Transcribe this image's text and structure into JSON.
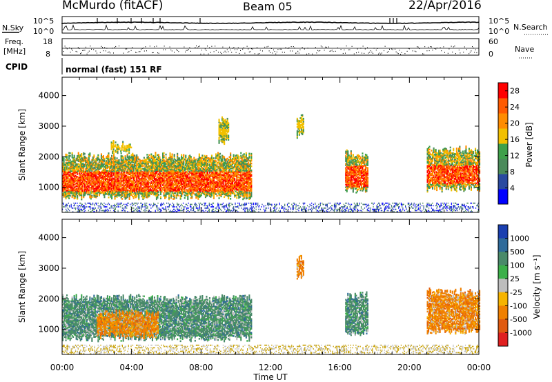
{
  "header": {
    "station": "McMurdo (fitACF)",
    "beam": "Beam 05",
    "date": "22/Apr/2016"
  },
  "top_panels": {
    "nsky_label": "N.Sky",
    "nsky_ticks": [
      "10^5",
      "10^0"
    ],
    "nsearch_label": "N.Search",
    "nsearch_ticks": [
      "10^5",
      "10^0"
    ],
    "freq_label": "Freq.",
    "freq_unit": "[MHz]",
    "freq_ticks": [
      "18",
      "8"
    ],
    "nave_label": "Nave",
    "nave_ticks": [
      "60",
      "0"
    ],
    "cpid_label": "CPID",
    "cpid_text": "normal (fast) 151 RF"
  },
  "colors": {
    "power_scale": [
      "#0000ff",
      "#2a4aa0",
      "#4a8a5a",
      "#3fa04a",
      "#f2c000",
      "#ff8c00",
      "#ff5a00",
      "#ff0000"
    ],
    "velocity_scale": [
      "#1a3fb0",
      "#2e6a9a",
      "#4a8a6a",
      "#3cb04a",
      "#bdbdbd",
      "#f6b400",
      "#f08000",
      "#e05a10",
      "#e02020"
    ],
    "ground_scatter": "#c8a000"
  },
  "chart_data": [
    {
      "type": "heatmap",
      "panel": "power",
      "ylabel": "Slant Range [km]",
      "ylim": [
        180,
        4600
      ],
      "yticks": [
        "1000",
        "2000",
        "3000",
        "4000"
      ],
      "xlabel": "",
      "xlim_hours": [
        0,
        24
      ],
      "xticks": [
        "00:00",
        "04:00",
        "08:00",
        "12:00",
        "16:00",
        "20:00",
        "00:00"
      ],
      "colorbar": {
        "label": "Power [dB]",
        "ticks": [
          "28",
          "24",
          "20",
          "16",
          "12",
          "8",
          "4"
        ],
        "range": [
          0,
          30
        ]
      },
      "echo_regions": [
        {
          "t_start": 0.0,
          "t_end": 10.9,
          "r_low": 700,
          "r_high": 2000,
          "core_low": 850,
          "core_high": 1500,
          "peak_db": 30
        },
        {
          "t_start": 2.8,
          "t_end": 4.0,
          "r_low": 2200,
          "r_high": 2400,
          "core_low": 2250,
          "core_high": 2350,
          "peak_db": 18
        },
        {
          "t_start": 9.0,
          "t_end": 9.6,
          "r_low": 2500,
          "r_high": 3200,
          "core_low": 2700,
          "core_high": 2900,
          "peak_db": 12
        },
        {
          "t_start": 13.5,
          "t_end": 13.9,
          "r_low": 2700,
          "r_high": 3300,
          "core_low": 2900,
          "core_high": 3100,
          "peak_db": 14
        },
        {
          "t_start": 16.3,
          "t_end": 17.6,
          "r_low": 900,
          "r_high": 2100,
          "core_low": 1000,
          "core_high": 1700,
          "peak_db": 28
        },
        {
          "t_start": 21.0,
          "t_end": 24.0,
          "r_low": 950,
          "r_high": 2200,
          "core_low": 1100,
          "core_high": 1700,
          "peak_db": 30
        }
      ],
      "ground_scatter_range": [
        180,
        500
      ]
    },
    {
      "type": "heatmap",
      "panel": "velocity",
      "ylabel": "Slant Range [km]",
      "ylim": [
        180,
        4600
      ],
      "yticks": [
        "1000",
        "2000",
        "3000",
        "4000"
      ],
      "xlabel": "Time UT",
      "xlim_hours": [
        0,
        24
      ],
      "xticks": [
        "00:00",
        "04:00",
        "08:00",
        "12:00",
        "16:00",
        "20:00",
        "00:00"
      ],
      "colorbar": {
        "label": "Velocity [m s⁻¹]",
        "ticks": [
          "1000",
          "500",
          "100",
          "25",
          "-25",
          "-100",
          "-500",
          "-1000"
        ],
        "range": [
          -1000,
          1000
        ]
      },
      "echo_regions": [
        {
          "t_start": 0.0,
          "t_end": 10.9,
          "r_low": 700,
          "r_high": 2000,
          "dominant_mps": 150
        },
        {
          "t_start": 2.0,
          "t_end": 5.5,
          "r_low": 800,
          "r_high": 1500,
          "dominant_mps": -150
        },
        {
          "t_start": 13.5,
          "t_end": 13.9,
          "r_low": 2700,
          "r_high": 3300,
          "dominant_mps": -200
        },
        {
          "t_start": 16.3,
          "t_end": 17.6,
          "r_low": 900,
          "r_high": 2100,
          "dominant_mps": 200
        },
        {
          "t_start": 21.0,
          "t_end": 24.0,
          "r_low": 950,
          "r_high": 2200,
          "dominant_mps": -300
        }
      ],
      "ground_scatter_range": [
        180,
        500
      ]
    }
  ]
}
